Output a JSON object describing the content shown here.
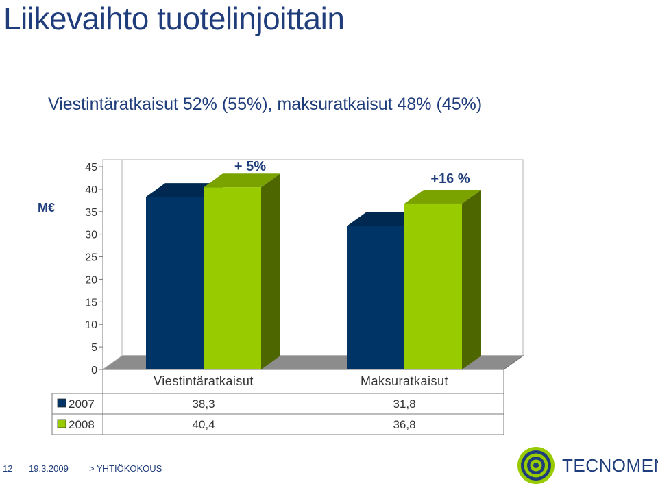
{
  "slide": {
    "title": "Liikevaihto tuotelinjoittain",
    "subtitle": "Viestintäratkaisut 52% (55%), maksuratkaisut 48% (45%)"
  },
  "chart_data": {
    "type": "bar",
    "unit_label": "M€",
    "categories": [
      "Viestintäratkaisut",
      "Maksuratkaisut"
    ],
    "series": [
      {
        "name": "2007",
        "values": [
          38.3,
          31.8
        ],
        "value_labels": [
          "38,3",
          "31,8"
        ],
        "color": "#003366"
      },
      {
        "name": "2008",
        "values": [
          40.4,
          36.8
        ],
        "value_labels": [
          "40,4",
          "36,8"
        ],
        "color": "#99cc00"
      }
    ],
    "annotations": [
      "+ 5%",
      "+16 %"
    ],
    "ylim": [
      0,
      45
    ],
    "yticks": [
      "0",
      "5",
      "10",
      "15",
      "20",
      "25",
      "30",
      "35",
      "40",
      "45"
    ],
    "grid": false,
    "legend": "data-table"
  },
  "footer": {
    "page_number": "12",
    "date": "19.3.2009",
    "event": "> YHTIÖKOKOUS",
    "brand": "TECNOMEN"
  },
  "logo": {
    "icon": "target-rings-icon",
    "colors": [
      "#99cc00",
      "#1f3d7a"
    ]
  }
}
